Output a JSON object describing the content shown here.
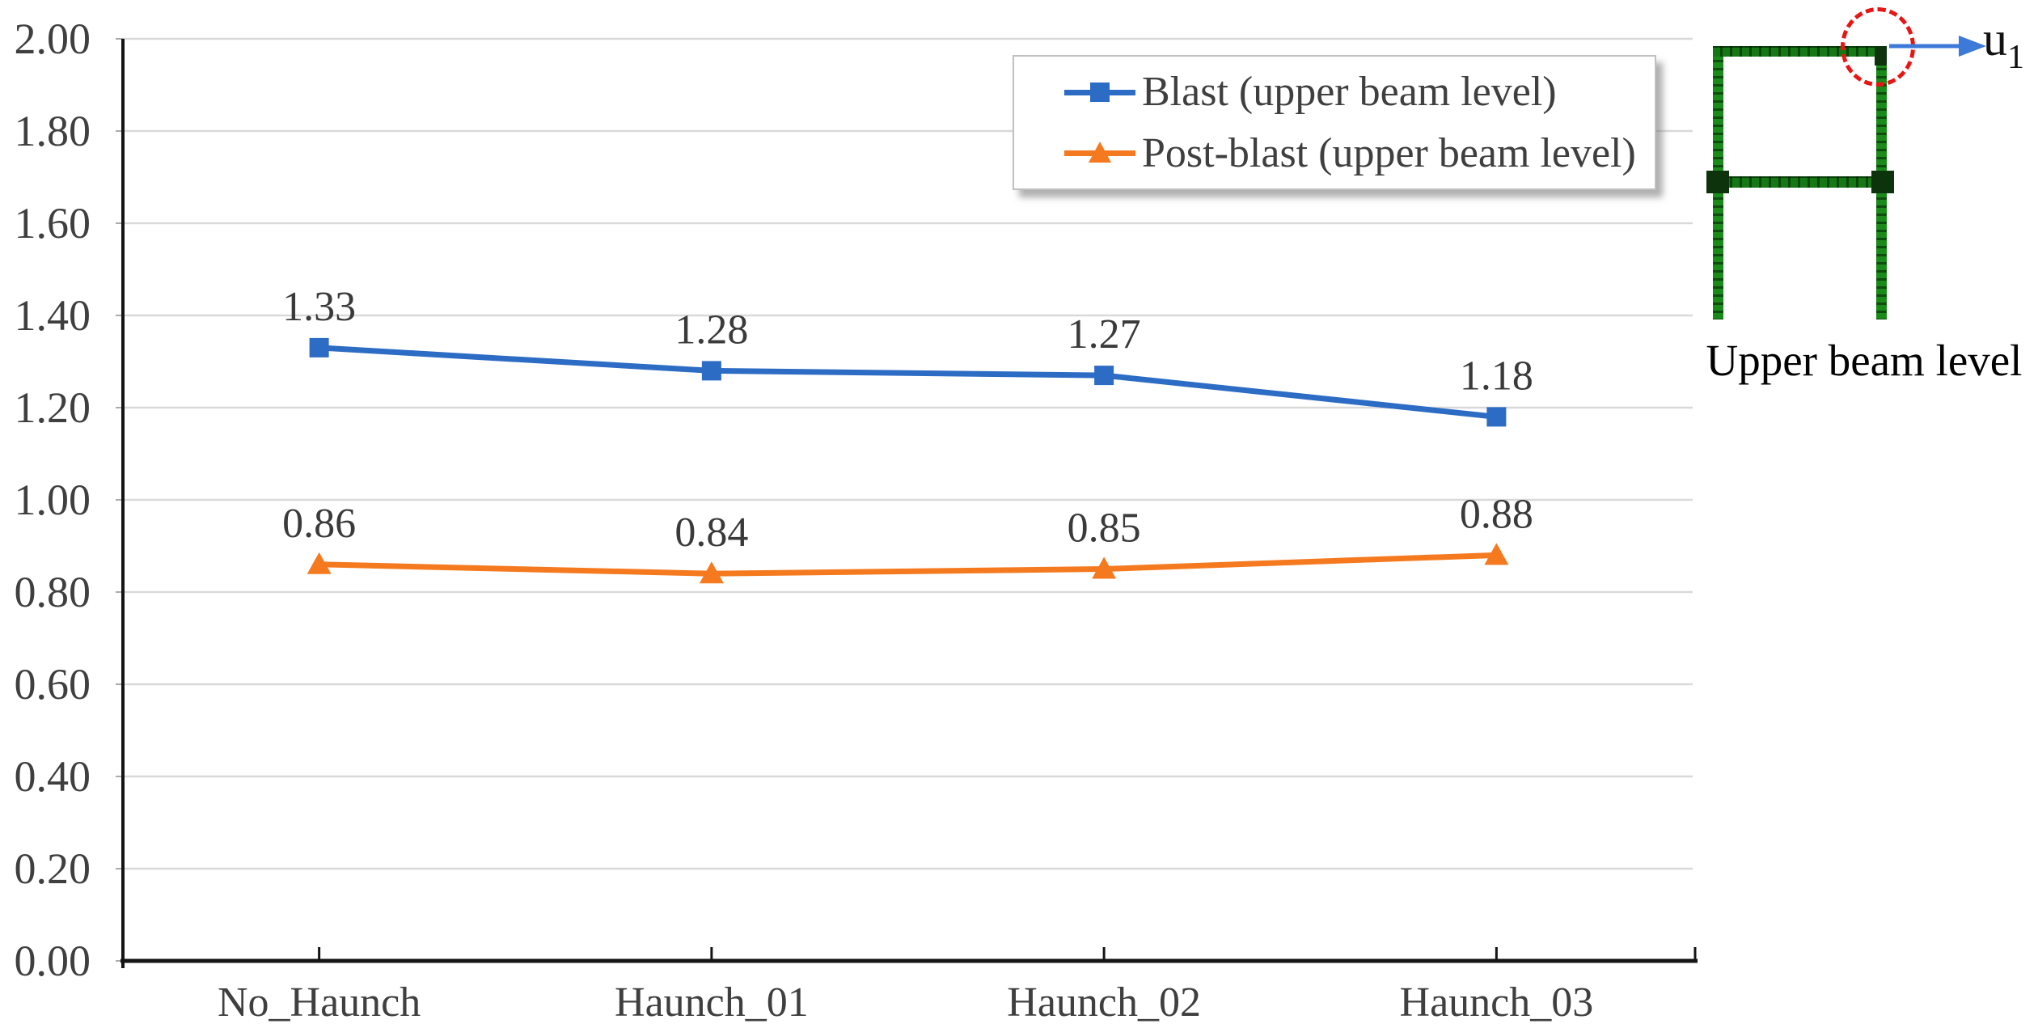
{
  "chart_data": {
    "type": "line",
    "title": "",
    "xlabel": "",
    "ylabel": "",
    "categories": [
      "No_Haunch",
      "Haunch_01",
      "Haunch_02",
      "Haunch_03"
    ],
    "series": [
      {
        "name": "Blast (upper beam level)",
        "marker": "square",
        "color": "#2D6CC4",
        "values": [
          1.33,
          1.28,
          1.27,
          1.18
        ],
        "data_labels": [
          "1.33",
          "1.28",
          "1.27",
          "1.18"
        ]
      },
      {
        "name": "Post-blast (upper beam level)",
        "marker": "triangle",
        "color": "#F57A1F",
        "values": [
          0.86,
          0.84,
          0.85,
          0.88
        ],
        "data_labels": [
          "0.86",
          "0.84",
          "0.85",
          "0.88"
        ]
      }
    ],
    "ylim": [
      0,
      2
    ],
    "ytick_step": 0.2,
    "ytick_labels": [
      "0.00",
      "0.20",
      "0.40",
      "0.60",
      "0.80",
      "1.00",
      "1.20",
      "1.40",
      "1.60",
      "1.80",
      "2.00"
    ],
    "grid": true,
    "legend_position": "top-right-inside"
  },
  "inset": {
    "caption": "Upper beam level",
    "displacement_label_base": "u",
    "displacement_label_subscript": "1",
    "frame_color": "#1A8A1A",
    "highlight_circle_color": "#E81515",
    "arrow_color": "#3C79D8"
  },
  "colors": {
    "background": "#FFFFFF",
    "gridline": "#D9D9D9",
    "axis": "#151515",
    "tick_text": "#3F3F3F",
    "data_label_text": "#3A3A3A",
    "legend_border": "#C0C0C0"
  }
}
